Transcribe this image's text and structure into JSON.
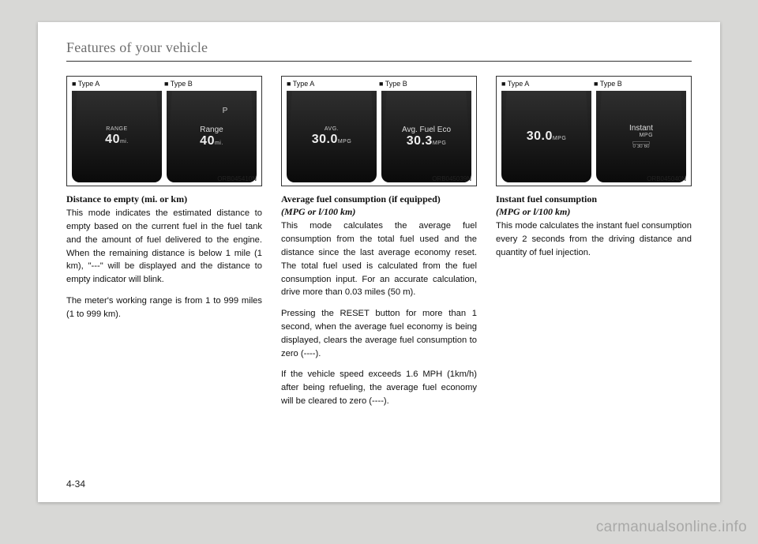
{
  "section_header": "Features of your vehicle",
  "page_number": "4-34",
  "watermark": "carmanualsonline.info",
  "columns": [
    {
      "figure": {
        "type_a_label": "■ Type A",
        "type_b_label": "■ Type B",
        "code": "ORB045410N",
        "panel_a": {
          "label_small": "RANGE",
          "value": "40",
          "unit": "mi."
        },
        "panel_b": {
          "label_med": "Range",
          "value": "40",
          "unit": "mi.",
          "top_badge": "P"
        }
      },
      "heading": "Distance to empty (mi. or km)",
      "paragraphs": [
        "This mode indicates the estimated distance to empty based on the current fuel in the fuel tank and the amount of fuel delivered to the engine. When the remaining distance is below 1 mile (1 km), \"---\" will be displayed and the distance to empty indicator will blink.",
        "The meter's working range is from 1 to 999 miles (1 to 999 km)."
      ]
    },
    {
      "figure": {
        "type_a_label": "■ Type A",
        "type_b_label": "■ Type B",
        "code": "ORB045039N",
        "panel_a": {
          "label_small": "AVG.",
          "value": "30.0",
          "unit": "MPG"
        },
        "panel_b": {
          "label_med": "Avg. Fuel Eco",
          "value": "30.3",
          "unit": "MPG"
        }
      },
      "heading": "Average fuel consumption (if equipped)",
      "heading_sub": "(MPG or l/100 km)",
      "paragraphs": [
        "This mode calculates the average fuel consumption from the total fuel used and the distance since the last average economy reset. The total fuel used is calculated from the fuel consumption input. For an accurate calculation, drive more than 0.03 miles (50 m).",
        "Pressing the RESET button for more than 1 second, when the average fuel economy is being displayed, clears the average fuel consumption to zero (----).",
        "If the vehicle speed exceeds 1.6 MPH (1km/h) after being refueling, the average fuel economy will be cleared to zero (----)."
      ]
    },
    {
      "figure": {
        "type_a_label": "■ Type A",
        "type_b_label": "■ Type B",
        "code": "ORB045040N",
        "panel_a": {
          "label_small": "",
          "value": "30.0",
          "unit": "MPG"
        },
        "panel_b": {
          "label_med": "Instant",
          "unit": "MPG",
          "bar_ticks": [
            "0",
            "30",
            "60"
          ]
        }
      },
      "heading": "Instant fuel consumption",
      "heading_sub": "(MPG or l/100 km)",
      "paragraphs": [
        "This mode calculates the instant fuel consumption every 2 seconds from the driving distance and quantity of fuel injection."
      ]
    }
  ]
}
